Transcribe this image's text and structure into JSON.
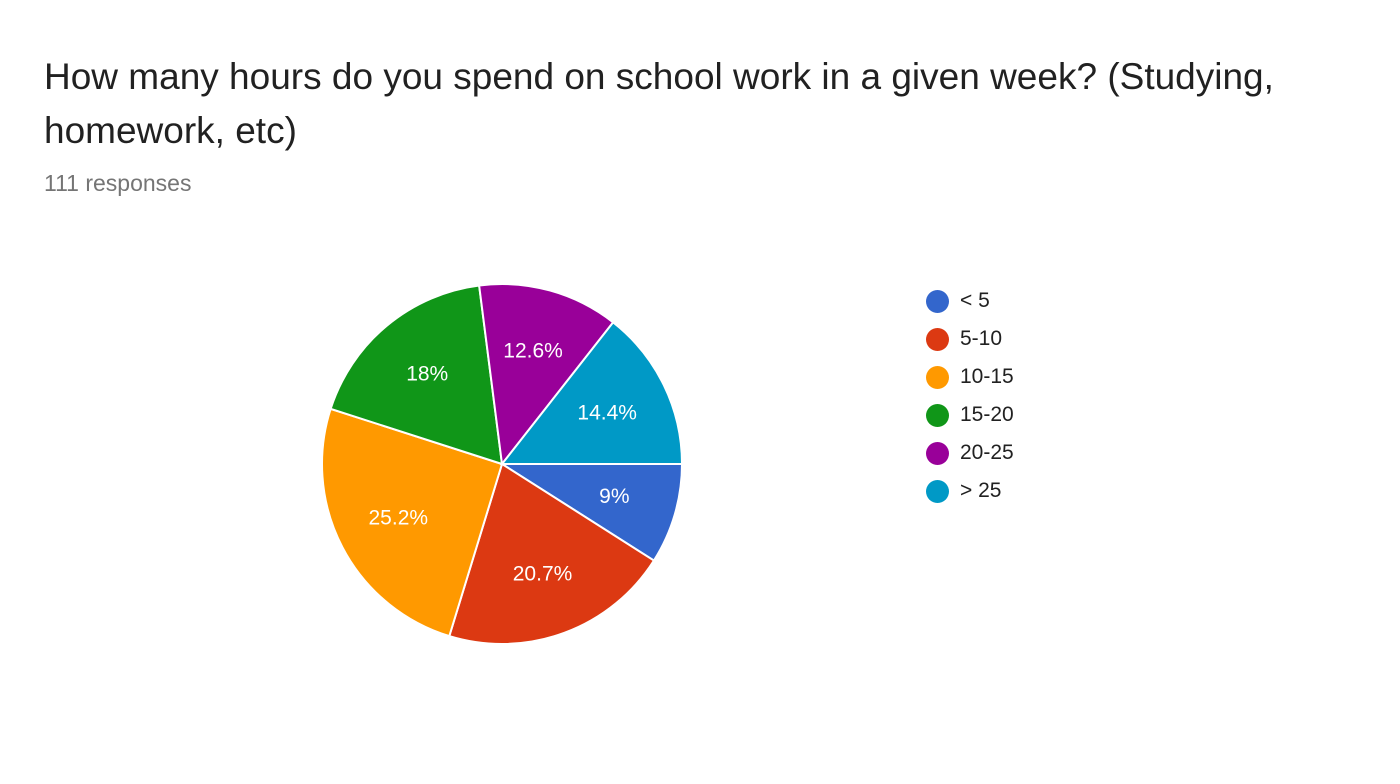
{
  "header": {
    "title": "How many hours do you spend on school work in a given week? (Studying, homework, etc)",
    "responses": "111 responses"
  },
  "chart_data": {
    "type": "pie",
    "categories": [
      "< 5",
      "5-10",
      "10-15",
      "15-20",
      "20-25",
      "> 25"
    ],
    "values": [
      9,
      20.7,
      25.2,
      18,
      12.6,
      14.4
    ],
    "labels": [
      "9%",
      "20.7%",
      "25.2%",
      "18%",
      "12.6%",
      "14.4%"
    ],
    "colors": [
      "#3366cc",
      "#dc3912",
      "#ff9900",
      "#109618",
      "#990099",
      "#0099c6"
    ],
    "start_angle_deg": 0,
    "direction": "clockwise",
    "legend": "right"
  }
}
